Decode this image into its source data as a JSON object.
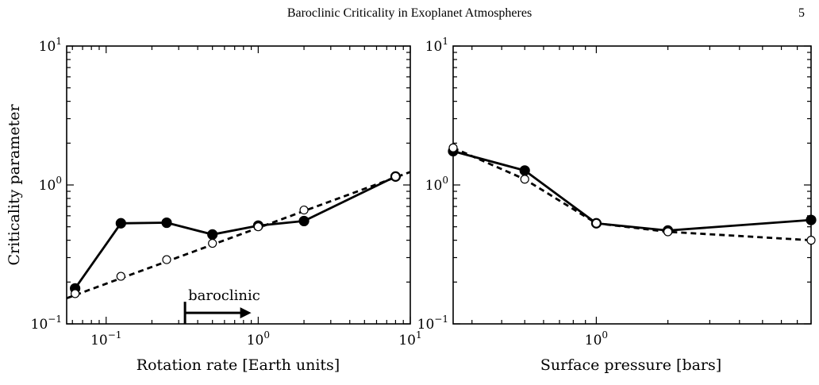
{
  "header": {
    "running_title": "Baroclinic Criticality in Exoplanet Atmospheres",
    "page_number": "5"
  },
  "chart_data": [
    {
      "type": "line",
      "title": "",
      "xlabel": "Rotation rate [Earth units]",
      "ylabel": "Criticality parameter",
      "xscale": "log",
      "yscale": "log",
      "xlim": [
        0.055,
        10
      ],
      "ylim": [
        0.1,
        10
      ],
      "x_tick_values": [
        0.1,
        1,
        10
      ],
      "y_tick_values": [
        0.1,
        1,
        10
      ],
      "tick_labels": {
        "base": "10",
        "x_exponents": [
          "−1",
          "0",
          "1"
        ],
        "y_exponents": [
          "−1",
          "0",
          "1"
        ]
      },
      "series": [
        {
          "style": "solid-filled",
          "x": [
            0.0625,
            0.125,
            0.25,
            0.5,
            1,
            2,
            8
          ],
          "y": [
            0.18,
            0.53,
            0.535,
            0.44,
            0.51,
            0.55,
            1.15
          ]
        },
        {
          "style": "dashed-open",
          "x": [
            0.0625,
            0.125,
            0.25,
            0.5,
            1,
            2,
            8
          ],
          "y": [
            0.165,
            0.22,
            0.29,
            0.38,
            0.5,
            0.66,
            1.15
          ]
        }
      ],
      "trend_line": {
        "style": "dashed",
        "x": [
          0.055,
          10
        ],
        "y": [
          0.153,
          1.24
        ]
      },
      "annotation": {
        "text": "baroclinic",
        "arrow_from_x": 0.33,
        "arrow_to_x": 0.9,
        "arrow_y": 0.12
      },
      "grid": false
    },
    {
      "type": "line",
      "title": "",
      "xlabel": "Surface pressure [bars]",
      "ylabel": "",
      "xscale": "log",
      "yscale": "log",
      "xlim": [
        0.25,
        8
      ],
      "ylim": [
        0.1,
        10
      ],
      "x_tick_values": [
        1
      ],
      "y_tick_values": [
        0.1,
        1,
        10
      ],
      "tick_labels": {
        "base": "10",
        "x_exponents": [
          "0"
        ],
        "y_exponents": [
          "−1",
          "0",
          "1"
        ]
      },
      "series": [
        {
          "style": "solid-filled",
          "x": [
            0.25,
            0.5,
            1,
            2,
            8
          ],
          "y": [
            1.75,
            1.27,
            0.53,
            0.47,
            0.56
          ]
        },
        {
          "style": "dashed-open",
          "x": [
            0.25,
            0.5,
            1,
            2,
            8
          ],
          "y": [
            1.85,
            1.1,
            0.53,
            0.46,
            0.4
          ]
        }
      ],
      "grid": false
    }
  ]
}
